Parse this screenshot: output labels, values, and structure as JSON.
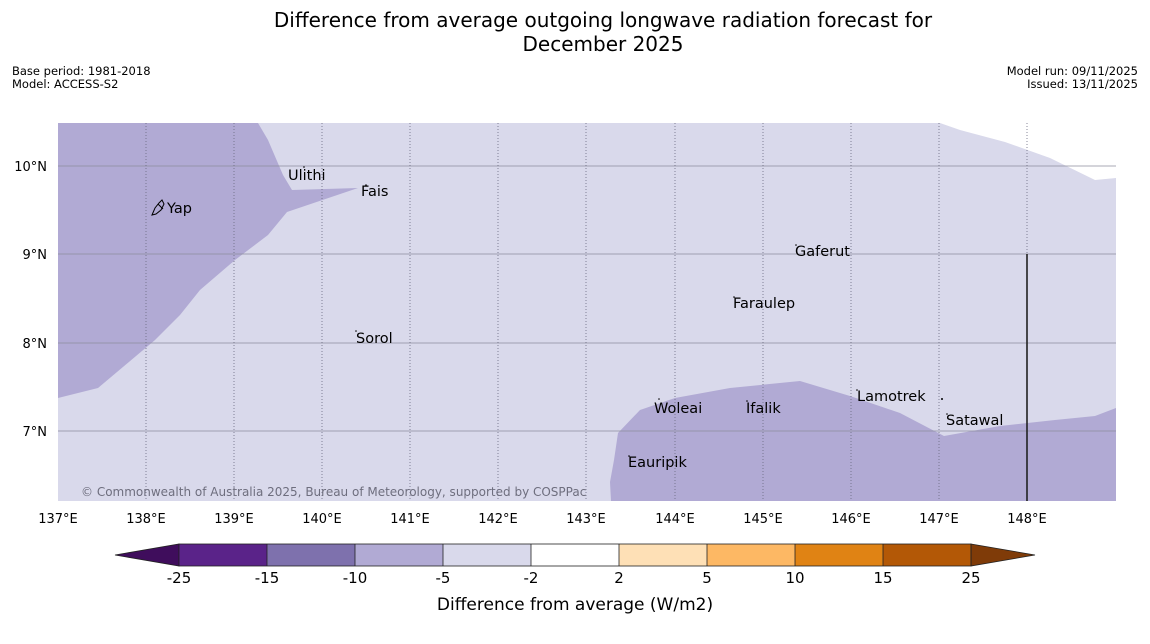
{
  "title": {
    "line1": "Difference from average outgoing longwave radiation forecast for",
    "line2": "December 2025"
  },
  "meta": {
    "base_period": "Base period: 1981-2018",
    "model": "Model: ACCESS-S2",
    "model_run": "Model run: 09/11/2025",
    "issued": "Issued: 13/11/2025"
  },
  "map": {
    "lat_labels": [
      "10°N",
      "9°N",
      "8°N",
      "7°N"
    ],
    "lon_labels": [
      "137°E",
      "138°E",
      "139°E",
      "140°E",
      "141°E",
      "142°E",
      "143°E",
      "144°E",
      "145°E",
      "146°E",
      "147°E",
      "148°E"
    ],
    "places": {
      "yap": "Yap",
      "ulithi": "Ulithi",
      "fais": "Fais",
      "gaferut": "Gaferut",
      "faraulep": "Faraulep",
      "sorol": "Sorol",
      "lamotrek": "Lamotrek",
      "woleai": "Woleai",
      "ifalik": "Ifalik",
      "satawal": "Satawal",
      "eauripik": "Eauripik"
    },
    "attribution": "© Commonwealth of Australia 2025, Bureau of Meteorology, supported by COSPPac"
  },
  "colorbar": {
    "ticks": [
      "-25",
      "-15",
      "-10",
      "-5",
      "-2",
      "2",
      "5",
      "10",
      "15",
      "25"
    ],
    "colors": [
      "#3f0d5c",
      "#5a2389",
      "#7e71ad",
      "#b1aad4",
      "#d9d9eb",
      "#ffffff",
      "#fee0b6",
      "#fdb864",
      "#e08314",
      "#b35806",
      "#7f3b08"
    ],
    "label": "Difference from average (W/m2)"
  }
}
